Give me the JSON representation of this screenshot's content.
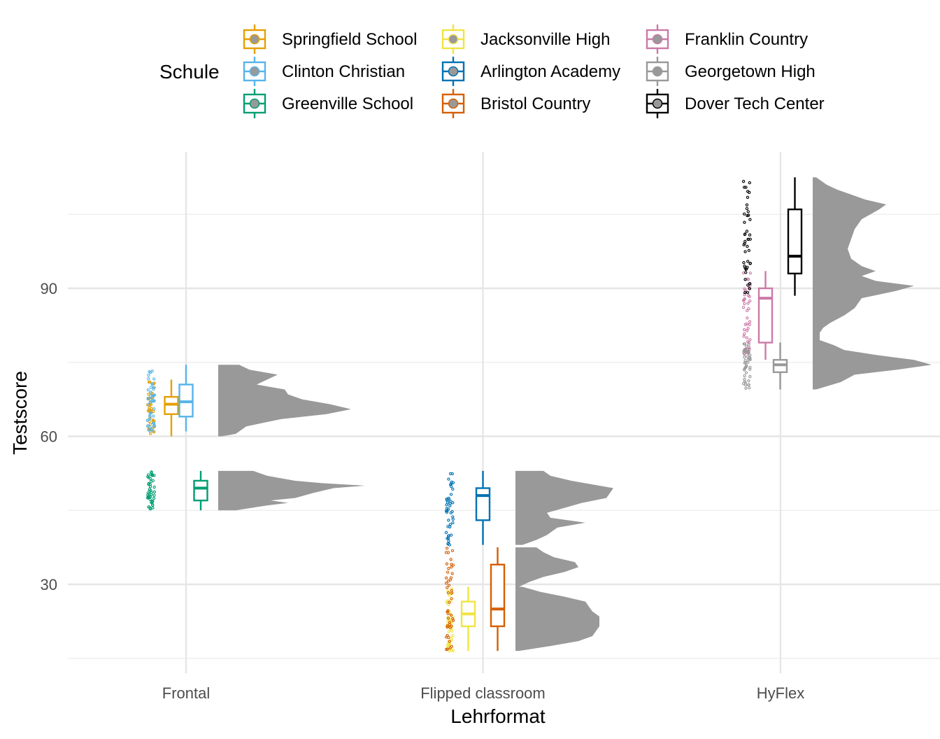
{
  "chart_data": {
    "type": "raincloud",
    "xlabel": "Lehrformat",
    "ylabel": "Testscore",
    "x_categories": [
      "Frontal",
      "Flipped classroom",
      "HyFlex"
    ],
    "y_ticks": [
      30,
      60,
      90
    ],
    "ylim": [
      15,
      119
    ],
    "grid": true,
    "legend": {
      "title": "Schule",
      "placement": "top",
      "entries": [
        {
          "label": "Springfield School",
          "color": "#E69F00"
        },
        {
          "label": "Clinton Christian",
          "color": "#56B4E9"
        },
        {
          "label": "Greenville School",
          "color": "#009E73"
        },
        {
          "label": "Jacksonville High",
          "color": "#F0E442"
        },
        {
          "label": "Arlington Academy",
          "color": "#0072B2"
        },
        {
          "label": "Bristol Country",
          "color": "#D55E00"
        },
        {
          "label": "Franklin Country",
          "color": "#CC79A7"
        },
        {
          "label": "Georgetown High",
          "color": "#999999"
        },
        {
          "label": "Dover Tech Center",
          "color": "#000000"
        }
      ]
    },
    "density_color": "#999999",
    "boxes": [
      {
        "school": "Springfield School",
        "format": "Frontal",
        "color": "#E69F00",
        "min": 60,
        "q1": 64.5,
        "median": 66.5,
        "q3": 68,
        "max": 71.5
      },
      {
        "school": "Clinton Christian",
        "format": "Frontal",
        "color": "#56B4E9",
        "min": 61,
        "q1": 64,
        "median": 67,
        "q3": 70.5,
        "max": 74.5
      },
      {
        "school": "Greenville School",
        "format": "Frontal",
        "color": "#009E73",
        "min": 45,
        "q1": 47,
        "median": 49.5,
        "q3": 51,
        "max": 53
      },
      {
        "school": "Arlington Academy",
        "format": "Flipped classroom",
        "color": "#0072B2",
        "min": 38,
        "q1": 43,
        "median": 48,
        "q3": 49.5,
        "max": 53
      },
      {
        "school": "Jacksonville High",
        "format": "Flipped classroom",
        "color": "#F0E442",
        "min": 16.5,
        "q1": 21.5,
        "median": 24,
        "q3": 26.5,
        "max": 29.5
      },
      {
        "school": "Bristol Country",
        "format": "Flipped classroom",
        "color": "#D55E00",
        "min": 16.5,
        "q1": 21.5,
        "median": 25,
        "q3": 34,
        "max": 37.5
      },
      {
        "school": "Franklin Country",
        "format": "HyFlex",
        "color": "#CC79A7",
        "min": 75.5,
        "q1": 79,
        "median": 88,
        "q3": 90,
        "max": 93.5
      },
      {
        "school": "Georgetown High",
        "format": "HyFlex",
        "color": "#999999",
        "min": 69.5,
        "q1": 73,
        "median": 74.5,
        "q3": 75.5,
        "max": 79
      },
      {
        "school": "Dover Tech Center",
        "format": "HyFlex",
        "color": "#000000",
        "min": 88.5,
        "q1": 93,
        "median": 96.5,
        "q3": 106,
        "max": 112.5
      }
    ],
    "clouds": [
      {
        "format": "Frontal",
        "profile": [
          [
            60,
            0.05
          ],
          [
            60.5,
            0.25
          ],
          [
            62,
            0.4
          ],
          [
            63.5,
            0.9
          ],
          [
            64.5,
            1.55
          ],
          [
            65.5,
            1.9
          ],
          [
            66.5,
            1.6
          ],
          [
            67.5,
            1.2
          ],
          [
            68.5,
            1.0
          ],
          [
            69.5,
            0.95
          ],
          [
            70.5,
            0.55
          ],
          [
            71.5,
            0.7
          ],
          [
            72.5,
            0.85
          ],
          [
            73.5,
            0.45
          ],
          [
            74.5,
            0.3
          ]
        ]
      },
      {
        "format": "Frontal",
        "profile": [
          [
            45,
            0.25
          ],
          [
            46,
            0.7
          ],
          [
            46.5,
            1.0
          ],
          [
            47,
            0.75
          ],
          [
            47.5,
            1.1
          ],
          [
            48.5,
            1.35
          ],
          [
            49.5,
            1.65
          ],
          [
            50,
            2.1
          ],
          [
            50.5,
            1.5
          ],
          [
            51,
            1.1
          ],
          [
            52,
            0.7
          ],
          [
            53,
            0.5
          ]
        ]
      },
      {
        "format": "Flipped classroom",
        "profile": [
          [
            38,
            0.1
          ],
          [
            39,
            0.3
          ],
          [
            40,
            0.45
          ],
          [
            41.5,
            0.6
          ],
          [
            42.5,
            1.0
          ],
          [
            43.5,
            0.5
          ],
          [
            44.5,
            0.45
          ],
          [
            45.5,
            0.7
          ],
          [
            46.5,
            0.95
          ],
          [
            47.5,
            1.3
          ],
          [
            48.5,
            1.35
          ],
          [
            49.5,
            1.4
          ],
          [
            51,
            0.8
          ],
          [
            52,
            0.5
          ],
          [
            53,
            0.4
          ]
        ]
      },
      {
        "format": "Flipped classroom",
        "profile": [
          [
            29.5,
            0.05
          ],
          [
            30.5,
            0.2
          ],
          [
            31.5,
            0.4
          ],
          [
            32.5,
            0.7
          ],
          [
            33.5,
            0.9
          ],
          [
            34.5,
            0.85
          ],
          [
            35.5,
            0.55
          ],
          [
            36.5,
            0.4
          ],
          [
            37.5,
            0.3
          ]
        ]
      },
      {
        "format": "Flipped classroom",
        "profile": [
          [
            16.5,
            0.05
          ],
          [
            17.5,
            0.5
          ],
          [
            18.5,
            0.9
          ],
          [
            19.5,
            1.1
          ],
          [
            20.5,
            1.15
          ],
          [
            21.5,
            1.2
          ],
          [
            22.5,
            1.2
          ],
          [
            23.5,
            1.2
          ],
          [
            24.5,
            1.1
          ],
          [
            25.5,
            1.05
          ],
          [
            26.5,
            1.0
          ],
          [
            27.5,
            0.7
          ],
          [
            28.5,
            0.35
          ],
          [
            29.5,
            0.1
          ]
        ]
      },
      {
        "format": "HyFlex",
        "profile": [
          [
            69.5,
            0.05
          ],
          [
            71,
            0.4
          ],
          [
            72.5,
            0.6
          ],
          [
            73.5,
            1.2
          ],
          [
            74.5,
            1.7
          ],
          [
            75.5,
            1.45
          ],
          [
            76.5,
            0.9
          ],
          [
            77.5,
            0.45
          ],
          [
            78.5,
            0.3
          ],
          [
            79.5,
            0.1
          ],
          [
            81,
            0.1
          ],
          [
            82,
            0.15
          ],
          [
            83,
            0.25
          ],
          [
            84.5,
            0.45
          ],
          [
            86,
            0.6
          ],
          [
            88,
            0.7
          ],
          [
            89.5,
            1.2
          ],
          [
            90.5,
            1.45
          ],
          [
            91.5,
            0.9
          ],
          [
            92.5,
            0.7
          ],
          [
            93.5,
            0.9
          ],
          [
            94.5,
            0.7
          ],
          [
            96,
            0.55
          ],
          [
            98,
            0.5
          ],
          [
            100,
            0.55
          ],
          [
            102,
            0.6
          ],
          [
            104,
            0.7
          ],
          [
            106,
            0.95
          ],
          [
            107,
            1.05
          ],
          [
            108,
            0.75
          ],
          [
            109,
            0.55
          ],
          [
            110,
            0.35
          ],
          [
            111,
            0.2
          ],
          [
            112.5,
            0.05
          ]
        ]
      }
    ],
    "point_sets": [
      {
        "school": "Springfield School",
        "color": "#E69F00",
        "ymin": 60,
        "ymax": 71.5,
        "n": 45
      },
      {
        "school": "Clinton Christian",
        "color": "#56B4E9",
        "ymin": 61,
        "ymax": 74.5,
        "n": 45
      },
      {
        "school": "Greenville School",
        "color": "#009E73",
        "ymin": 45,
        "ymax": 53,
        "n": 45
      },
      {
        "school": "Arlington Academy",
        "color": "#0072B2",
        "ymin": 38,
        "ymax": 53,
        "n": 45
      },
      {
        "school": "Jacksonville High",
        "color": "#F0E442",
        "ymin": 16.5,
        "ymax": 29.5,
        "n": 45
      },
      {
        "school": "Bristol Country",
        "color": "#D55E00",
        "ymin": 16.5,
        "ymax": 37.5,
        "n": 45
      },
      {
        "school": "Franklin Country",
        "color": "#CC79A7",
        "ymin": 75.5,
        "ymax": 93.5,
        "n": 45
      },
      {
        "school": "Georgetown High",
        "color": "#999999",
        "ymin": 69.5,
        "ymax": 79,
        "n": 45
      },
      {
        "school": "Dover Tech Center",
        "color": "#000000",
        "ymin": 88.5,
        "ymax": 112.5,
        "n": 45
      }
    ]
  }
}
